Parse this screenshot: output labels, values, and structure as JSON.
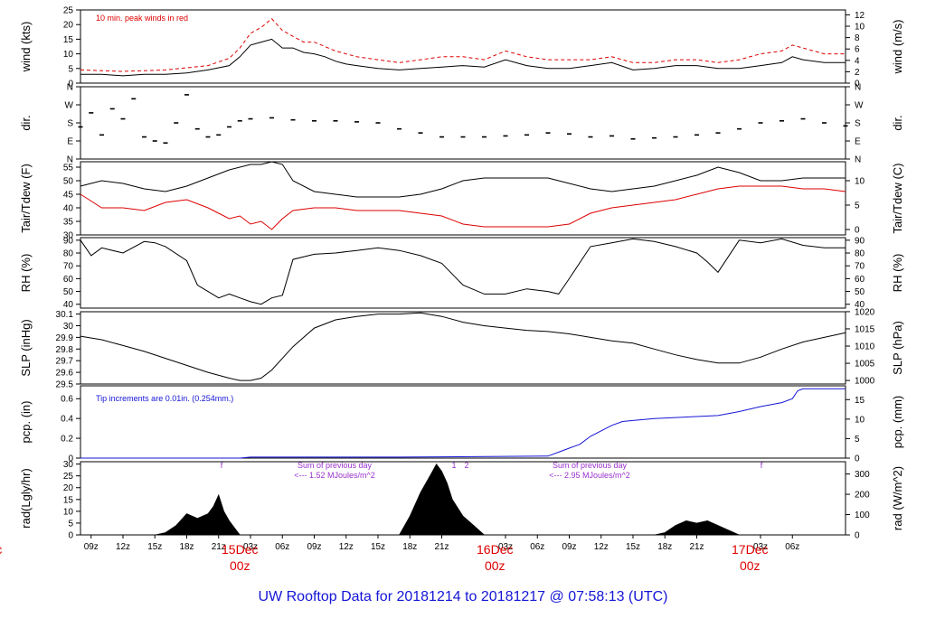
{
  "title": "UW Rooftop Data for 20181214  to  20181217 @ 07:58:13  (UTC)",
  "colors": {
    "black": "#000000",
    "red": "#dd0000",
    "blue": "#1515d6",
    "purple": "#9a32cd"
  },
  "time_axis": {
    "range_hours": [
      0,
      72
    ],
    "ticks": [
      {
        "h": 1,
        "label": "09z"
      },
      {
        "h": 4,
        "label": "12z"
      },
      {
        "h": 7,
        "label": "15z"
      },
      {
        "h": 10,
        "label": "18z"
      },
      {
        "h": 13,
        "label": "21z"
      },
      {
        "h": 16,
        "label": "03z"
      },
      {
        "h": 19,
        "label": "06z"
      },
      {
        "h": 22,
        "label": "09z"
      },
      {
        "h": 25,
        "label": "12z"
      },
      {
        "h": 28,
        "label": "15z"
      },
      {
        "h": 31,
        "label": "18z"
      },
      {
        "h": 34,
        "label": "21z"
      },
      {
        "h": 40,
        "label": "03z"
      },
      {
        "h": 43,
        "label": "06z"
      },
      {
        "h": 46,
        "label": "09z"
      },
      {
        "h": 49,
        "label": "12z"
      },
      {
        "h": 52,
        "label": "15z"
      },
      {
        "h": 55,
        "label": "18z"
      },
      {
        "h": 58,
        "label": "21z"
      },
      {
        "h": 64,
        "label": "03z"
      },
      {
        "h": 67,
        "label": "06z"
      }
    ],
    "day_labels": [
      {
        "h": -8,
        "date": "ec",
        "hour": "z"
      },
      {
        "h": 15,
        "date": "15Dec",
        "hour": "00z"
      },
      {
        "h": 39,
        "date": "16Dec",
        "hour": "00z"
      },
      {
        "h": 63,
        "date": "17Dec",
        "hour": "00z"
      }
    ]
  },
  "annotations": {
    "wind_note": "10 min. peak winds in red",
    "pcp_note": "Tip increments are 0.01in. (0.254mm.)",
    "rad_sum1_line1": "Sum of previous day",
    "rad_sum1_line2": "<--- 1.52 MJoules/m^2",
    "rad_sum2_line1": "Sum of previous day",
    "rad_sum2_line2": "<--- 2.95 MJoules/m^2",
    "rad_mark_f": "f",
    "rad_mark_1": "1",
    "rad_mark_2": "2"
  },
  "chart_data": [
    {
      "type": "line",
      "id": "wind",
      "ylabel": "wind (kts)",
      "ylabel_right": "wind (m/s)",
      "ylim": [
        0,
        25
      ],
      "yticks": [
        0,
        5,
        10,
        15,
        20,
        25
      ],
      "right_lim": [
        0,
        12.86
      ],
      "right_ticks": [
        0,
        2,
        4,
        6,
        8,
        10,
        12
      ],
      "series": [
        {
          "color": "black",
          "x": [
            0,
            2,
            4,
            6,
            8,
            10,
            12,
            14,
            15,
            16,
            17,
            18,
            19,
            20,
            21,
            22,
            23,
            24,
            25,
            26,
            28,
            30,
            32,
            34,
            36,
            38,
            40,
            42,
            44,
            46,
            48,
            50,
            52,
            54,
            56,
            58,
            60,
            62,
            64,
            66,
            67,
            68,
            70,
            72
          ],
          "values": [
            3,
            3,
            2.5,
            3,
            3,
            3.5,
            4.5,
            6,
            9,
            13,
            14,
            15,
            12,
            12,
            10.5,
            10,
            9,
            7.5,
            6.5,
            6,
            5,
            4.5,
            5,
            5.5,
            6,
            5.5,
            8,
            6,
            5,
            5,
            6,
            7,
            4.5,
            5,
            6,
            6,
            5,
            5,
            6,
            7,
            9,
            8,
            7,
            7
          ]
        },
        {
          "color": "red",
          "x": [
            0,
            4,
            8,
            12,
            14,
            15,
            16,
            17,
            18,
            19,
            20,
            21,
            22,
            24,
            26,
            28,
            30,
            32,
            34,
            36,
            38,
            40,
            42,
            44,
            46,
            48,
            50,
            52,
            54,
            56,
            58,
            60,
            62,
            64,
            66,
            67,
            68,
            70,
            72
          ],
          "values": [
            4.5,
            4,
            4.5,
            6,
            8.5,
            12,
            17,
            19,
            22,
            18,
            16,
            14,
            14,
            11,
            9,
            8,
            7,
            8,
            9,
            9,
            8,
            11,
            9,
            8,
            8,
            8,
            9,
            7,
            7,
            8,
            8,
            7,
            8,
            10,
            11,
            13,
            12,
            10,
            10
          ]
        }
      ]
    },
    {
      "type": "scatter",
      "id": "dir",
      "ylabel": "dir.",
      "ylabel_right": "dir.",
      "ylim": [
        0,
        360
      ],
      "yticks": [
        0,
        90,
        180,
        270,
        360
      ],
      "ytick_labels": [
        "N",
        "E",
        "S",
        "W",
        "N"
      ],
      "series": [
        {
          "color": "black",
          "x": [
            0,
            1,
            2,
            3,
            4,
            5,
            6,
            7,
            8,
            9,
            10,
            11,
            12,
            13,
            14,
            15,
            16,
            18,
            20,
            22,
            24,
            26,
            28,
            30,
            32,
            34,
            36,
            38,
            40,
            42,
            44,
            46,
            48,
            50,
            52,
            54,
            56,
            58,
            60,
            62,
            64,
            66,
            68,
            70,
            72
          ],
          "values": [
            160,
            230,
            120,
            250,
            200,
            300,
            110,
            90,
            80,
            180,
            320,
            150,
            110,
            120,
            160,
            190,
            200,
            205,
            195,
            190,
            190,
            185,
            180,
            150,
            130,
            110,
            110,
            110,
            115,
            120,
            130,
            125,
            110,
            115,
            100,
            105,
            110,
            120,
            130,
            150,
            180,
            190,
            200,
            180,
            165
          ]
        }
      ]
    },
    {
      "type": "line",
      "id": "temp",
      "ylabel": "Tair/Tdew (F)",
      "ylabel_right": "Tair/Tdew (C)",
      "ylim": [
        30,
        57
      ],
      "yticks": [
        30,
        35,
        40,
        45,
        50,
        55
      ],
      "right_lim": [
        -1.11,
        13.89
      ],
      "right_ticks": [
        0,
        5,
        10
      ],
      "series": [
        {
          "color": "black",
          "x": [
            0,
            2,
            4,
            6,
            8,
            10,
            12,
            14,
            16,
            17,
            18,
            19,
            20,
            22,
            24,
            26,
            28,
            30,
            32,
            34,
            36,
            38,
            40,
            42,
            44,
            46,
            48,
            50,
            52,
            54,
            56,
            58,
            60,
            62,
            64,
            66,
            68,
            70,
            72
          ],
          "values": [
            48,
            50,
            49,
            47,
            46,
            48,
            51,
            54,
            56,
            56,
            57,
            56,
            50,
            46,
            45,
            44,
            44,
            44,
            45,
            47,
            50,
            51,
            51,
            51,
            51,
            49,
            47,
            46,
            47,
            48,
            50,
            52,
            55,
            53,
            50,
            50,
            51,
            51,
            51
          ]
        },
        {
          "color": "red",
          "x": [
            0,
            2,
            4,
            6,
            8,
            10,
            12,
            13,
            14,
            15,
            16,
            17,
            18,
            19,
            20,
            22,
            24,
            26,
            28,
            30,
            32,
            34,
            36,
            38,
            40,
            42,
            44,
            46,
            48,
            50,
            52,
            54,
            56,
            58,
            60,
            62,
            64,
            66,
            68,
            70,
            72
          ],
          "values": [
            45,
            40,
            40,
            39,
            42,
            43,
            40,
            38,
            36,
            37,
            34,
            35,
            32,
            36,
            39,
            40,
            40,
            39,
            39,
            39,
            38,
            37,
            34,
            33,
            33,
            33,
            33,
            34,
            38,
            40,
            41,
            42,
            43,
            45,
            47,
            48,
            48,
            48,
            47,
            47,
            46
          ]
        }
      ]
    },
    {
      "type": "line",
      "id": "rh",
      "ylabel": "RH (%)",
      "ylabel_right": "RH (%)",
      "ylim": [
        37,
        92
      ],
      "yticks": [
        40,
        50,
        60,
        70,
        80,
        90
      ],
      "right_lim": [
        37,
        92
      ],
      "right_ticks": [
        40,
        50,
        60,
        70,
        80,
        90
      ],
      "series": [
        {
          "color": "black",
          "x": [
            0,
            1,
            2,
            4,
            6,
            7,
            8,
            10,
            11,
            12,
            13,
            14,
            15,
            16,
            17,
            18,
            19,
            20,
            22,
            24,
            26,
            28,
            30,
            32,
            34,
            36,
            38,
            40,
            42,
            44,
            45,
            46,
            48,
            50,
            52,
            54,
            56,
            58,
            59,
            60,
            62,
            64,
            66,
            68,
            70,
            72
          ],
          "values": [
            90,
            78,
            84,
            80,
            89,
            88,
            85,
            74,
            55,
            50,
            45,
            48,
            45,
            42,
            40,
            45,
            47,
            75,
            79,
            80,
            82,
            84,
            82,
            78,
            72,
            55,
            48,
            48,
            52,
            50,
            48,
            60,
            85,
            88,
            91,
            89,
            85,
            80,
            73,
            65,
            90,
            88,
            91,
            86,
            84,
            84
          ]
        }
      ]
    },
    {
      "type": "line",
      "id": "slp",
      "ylabel": "SLP (inHg)",
      "ylabel_right": "SLP (hPa)",
      "ylim": [
        29.5,
        30.12
      ],
      "yticks": [
        29.5,
        29.6,
        29.7,
        29.8,
        29.9,
        30.0,
        30.1
      ],
      "right_lim": [
        998.98,
        1019.98
      ],
      "right_ticks": [
        1000,
        1005,
        1010,
        1015,
        1020
      ],
      "series": [
        {
          "color": "black",
          "x": [
            0,
            2,
            4,
            6,
            8,
            10,
            12,
            14,
            15,
            16,
            17,
            18,
            20,
            22,
            24,
            26,
            28,
            30,
            32,
            34,
            36,
            38,
            40,
            42,
            44,
            46,
            48,
            50,
            52,
            54,
            56,
            58,
            60,
            62,
            64,
            66,
            68,
            70,
            72
          ],
          "values": [
            29.91,
            29.88,
            29.83,
            29.78,
            29.72,
            29.66,
            29.6,
            29.55,
            29.53,
            29.53,
            29.55,
            29.62,
            29.82,
            29.98,
            30.05,
            30.08,
            30.1,
            30.1,
            30.11,
            30.08,
            30.03,
            30.0,
            29.98,
            29.96,
            29.95,
            29.93,
            29.9,
            29.87,
            29.85,
            29.8,
            29.75,
            29.71,
            29.68,
            29.68,
            29.73,
            29.8,
            29.86,
            29.9,
            29.94
          ]
        }
      ]
    },
    {
      "type": "line",
      "id": "pcp",
      "ylabel": "pcp. (in)",
      "ylabel_right": "pcp. (mm)",
      "ylim": [
        0,
        0.73
      ],
      "yticks": [
        0,
        0.2,
        0.4,
        0.6
      ],
      "right_lim": [
        0,
        18.54
      ],
      "right_ticks": [
        0,
        5,
        10,
        15
      ],
      "series": [
        {
          "color": "blue",
          "x": [
            0,
            15,
            16,
            30,
            44,
            45,
            46,
            47,
            48,
            50,
            51,
            52,
            54,
            56,
            58,
            60,
            62,
            64,
            66,
            67,
            67.5,
            68,
            72
          ],
          "values": [
            0,
            0,
            0.01,
            0.01,
            0.02,
            0.06,
            0.1,
            0.14,
            0.22,
            0.33,
            0.37,
            0.38,
            0.4,
            0.41,
            0.42,
            0.43,
            0.47,
            0.52,
            0.56,
            0.6,
            0.68,
            0.7,
            0.7
          ]
        }
      ]
    },
    {
      "type": "area",
      "id": "rad",
      "ylabel": "rad(Lgly/hr)",
      "ylabel_right": "rad (W/m^2)",
      "ylim": [
        0,
        31
      ],
      "yticks": [
        0,
        5,
        10,
        15,
        20,
        25,
        30
      ],
      "right_lim": [
        0,
        360.5
      ],
      "right_ticks": [
        0,
        100,
        200,
        300
      ],
      "series": [
        {
          "color": "black",
          "x": [
            0,
            7,
            8,
            9,
            10,
            11,
            12,
            12.5,
            13,
            13.5,
            14,
            15,
            16,
            30,
            31,
            32,
            33,
            33.5,
            34,
            34.5,
            35,
            36,
            37,
            38,
            54,
            55,
            56,
            57,
            58,
            59,
            60,
            61,
            62,
            72
          ],
          "values": [
            0,
            0,
            1,
            4,
            9,
            7,
            9,
            12,
            17,
            10,
            6,
            0,
            0,
            0,
            8,
            18,
            26,
            30,
            27,
            22,
            15,
            8,
            4,
            0,
            0,
            1,
            4,
            6,
            5,
            6,
            4,
            2,
            0,
            0
          ]
        }
      ]
    }
  ]
}
